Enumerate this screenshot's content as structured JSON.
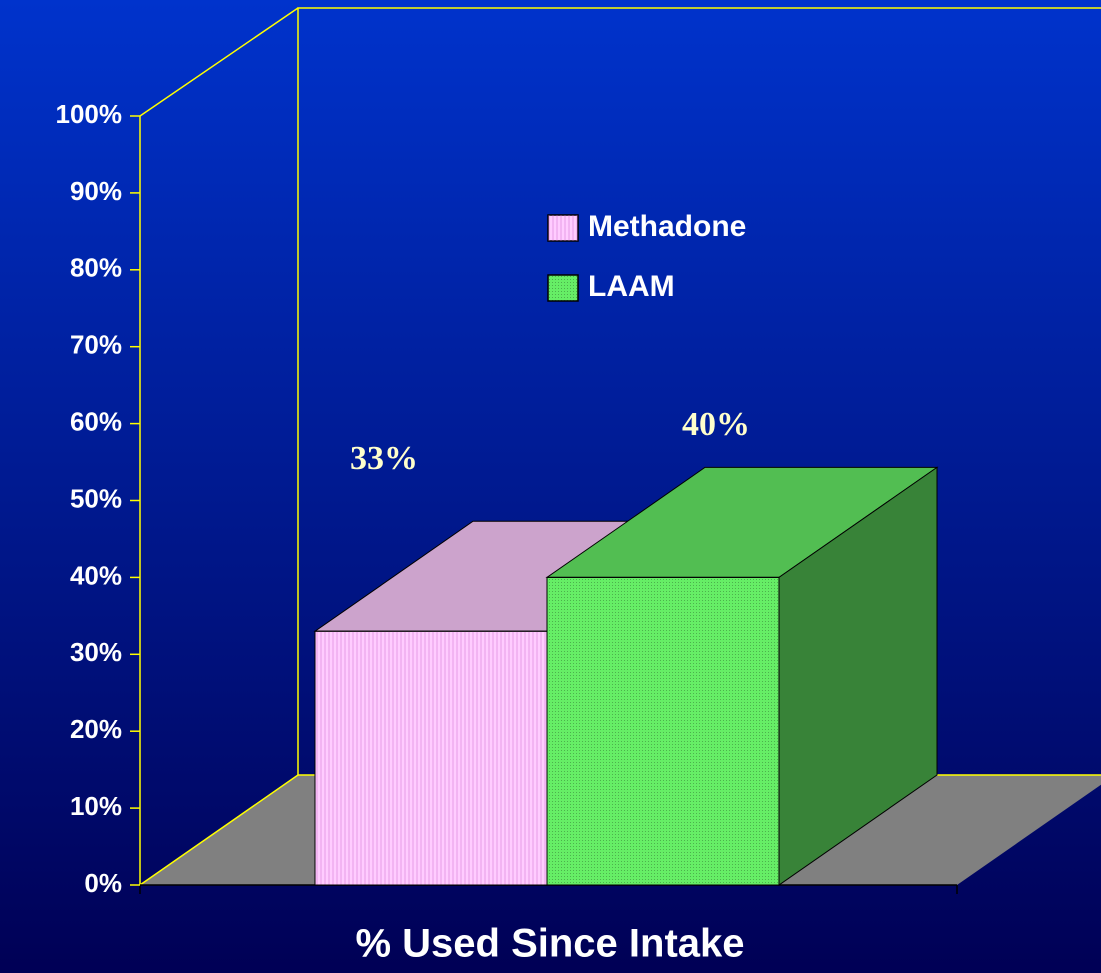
{
  "chart_data": {
    "type": "bar3d",
    "x_label": "% Used Since Intake",
    "series": [
      {
        "name": "Methadone",
        "color": "#ffccff",
        "values": [
          33
        ],
        "value_labels": [
          "33%"
        ]
      },
      {
        "name": "LAAM",
        "color": "#66ee66",
        "values": [
          40
        ],
        "value_labels": [
          "40%"
        ]
      }
    ],
    "ylim": [
      0,
      100
    ],
    "yticks": [
      {
        "value": 0,
        "label": "0%"
      },
      {
        "value": 10,
        "label": "10%"
      },
      {
        "value": 20,
        "label": "20%"
      },
      {
        "value": 30,
        "label": "30%"
      },
      {
        "value": 40,
        "label": "40%"
      },
      {
        "value": 50,
        "label": "50%"
      },
      {
        "value": 60,
        "label": "60%"
      },
      {
        "value": 70,
        "label": "70%"
      },
      {
        "value": 80,
        "label": "80%"
      },
      {
        "value": 90,
        "label": "90%"
      },
      {
        "value": 100,
        "label": "100%"
      }
    ]
  }
}
